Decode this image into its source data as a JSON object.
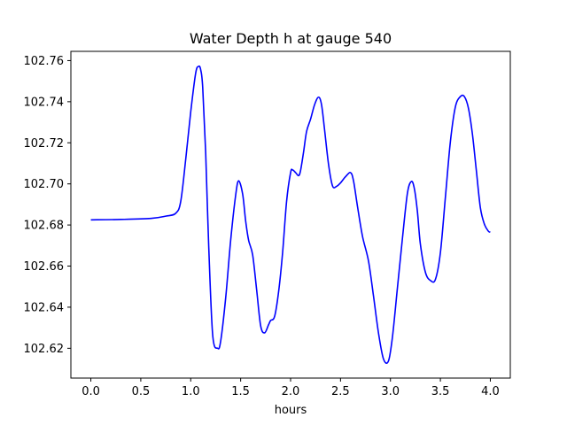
{
  "chart_data": {
    "type": "line",
    "title": "Water Depth h at gauge 540",
    "xlabel": "hours",
    "ylabel": "",
    "xlim": [
      -0.2,
      4.2
    ],
    "ylim": [
      102.6055,
      102.7645
    ],
    "xticks": [
      0.0,
      0.5,
      1.0,
      1.5,
      2.0,
      2.5,
      3.0,
      3.5,
      4.0
    ],
    "xtick_labels": [
      "0.0",
      "0.5",
      "1.0",
      "1.5",
      "2.0",
      "2.5",
      "3.0",
      "3.5",
      "4.0"
    ],
    "yticks": [
      102.62,
      102.64,
      102.66,
      102.68,
      102.7,
      102.72,
      102.74,
      102.76
    ],
    "ytick_labels": [
      "102.62",
      "102.64",
      "102.66",
      "102.68",
      "102.70",
      "102.72",
      "102.74",
      "102.76"
    ],
    "grid": false,
    "series": [
      {
        "color": "#0000ff",
        "x": [
          0.0,
          0.3,
          0.6,
          0.75,
          0.85,
          0.9,
          0.95,
          1.0,
          1.05,
          1.08,
          1.1,
          1.12,
          1.15,
          1.18,
          1.22,
          1.27,
          1.3,
          1.35,
          1.4,
          1.45,
          1.48,
          1.52,
          1.55,
          1.58,
          1.62,
          1.66,
          1.7,
          1.74,
          1.78,
          1.8,
          1.84,
          1.88,
          1.92,
          1.96,
          2.0,
          2.02,
          2.05,
          2.08,
          2.1,
          2.13,
          2.16,
          2.2,
          2.24,
          2.28,
          2.31,
          2.34,
          2.38,
          2.42,
          2.46,
          2.5,
          2.55,
          2.6,
          2.63,
          2.67,
          2.72,
          2.78,
          2.83,
          2.88,
          2.93,
          2.98,
          3.02,
          3.07,
          3.12,
          3.17,
          3.21,
          3.24,
          3.27,
          3.3,
          3.35,
          3.4,
          3.45,
          3.5,
          3.55,
          3.6,
          3.65,
          3.7,
          3.74,
          3.78,
          3.82,
          3.86,
          3.9,
          3.94,
          3.98,
          4.0
        ],
        "y": [
          102.6825,
          102.6827,
          102.6832,
          102.6843,
          102.6857,
          102.6915,
          102.712,
          102.735,
          102.754,
          102.7572,
          102.7555,
          102.747,
          102.715,
          102.67,
          102.6265,
          102.62,
          102.6235,
          102.6445,
          102.6725,
          102.6945,
          102.7015,
          102.695,
          102.682,
          102.6725,
          102.6655,
          102.6485,
          102.631,
          102.6275,
          102.6315,
          102.6335,
          102.6355,
          102.6475,
          102.6665,
          102.6915,
          102.7055,
          102.7068,
          102.7055,
          102.704,
          102.7065,
          102.7155,
          102.7255,
          102.7315,
          102.7385,
          102.7422,
          102.7385,
          102.7265,
          102.7095,
          102.699,
          102.6988,
          102.7005,
          102.7035,
          102.7055,
          102.7015,
          102.689,
          102.6745,
          102.6625,
          102.6455,
          102.6275,
          102.6148,
          102.6138,
          102.6255,
          102.6495,
          102.6735,
          102.6955,
          102.7012,
          102.6975,
          102.6865,
          102.6705,
          102.657,
          102.653,
          102.6535,
          102.6665,
          102.6935,
          102.7205,
          102.7375,
          102.7425,
          102.7425,
          102.737,
          102.7245,
          102.7065,
          102.6885,
          102.6805,
          102.677,
          102.6765
        ]
      }
    ]
  }
}
